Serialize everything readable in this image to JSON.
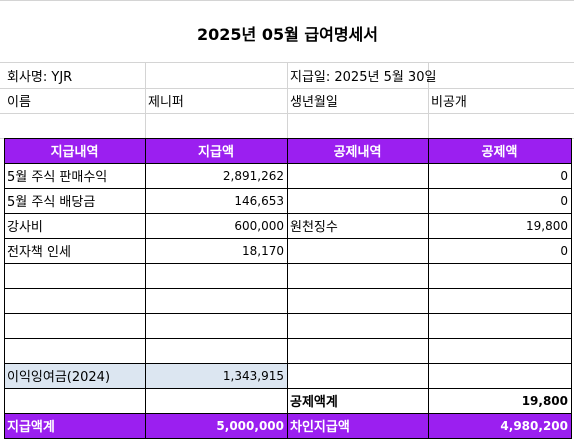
{
  "header": {
    "title": "2025년 05월 급여명세서"
  },
  "info": {
    "company": "회사명: YJR",
    "pay_date": "지급일: 2025년 5월 30일",
    "name_label": "이름",
    "name": "제니퍼",
    "birth_label": "생년월일",
    "birth": "비공개"
  },
  "table": {
    "columns": [
      "지급내역",
      "지급액",
      "공제내역",
      "공제액"
    ],
    "payments": [
      {
        "item": "5월 주식 판매수익",
        "amount": "2,891,262"
      },
      {
        "item": "5월 주식 배당금",
        "amount": "146,653"
      },
      {
        "item": "강사비",
        "amount": "600,000"
      },
      {
        "item": "전자책 인세",
        "amount": "18,170"
      }
    ],
    "deductions": [
      {
        "amount": "0"
      },
      {
        "amount": "0"
      },
      {
        "item": "원천징수",
        "amount": "19,800"
      },
      {
        "amount": "0"
      }
    ],
    "retained": {
      "item": "이익잉여금(2024)",
      "amount": "1,343,915"
    },
    "deduction_total": {
      "label": "공제액계",
      "amount": "19,800"
    },
    "payment_total": {
      "label": "지급액계",
      "amount": "5,000,000"
    },
    "net_pay": {
      "label": "차인지급액",
      "amount": "4,980,200"
    }
  }
}
